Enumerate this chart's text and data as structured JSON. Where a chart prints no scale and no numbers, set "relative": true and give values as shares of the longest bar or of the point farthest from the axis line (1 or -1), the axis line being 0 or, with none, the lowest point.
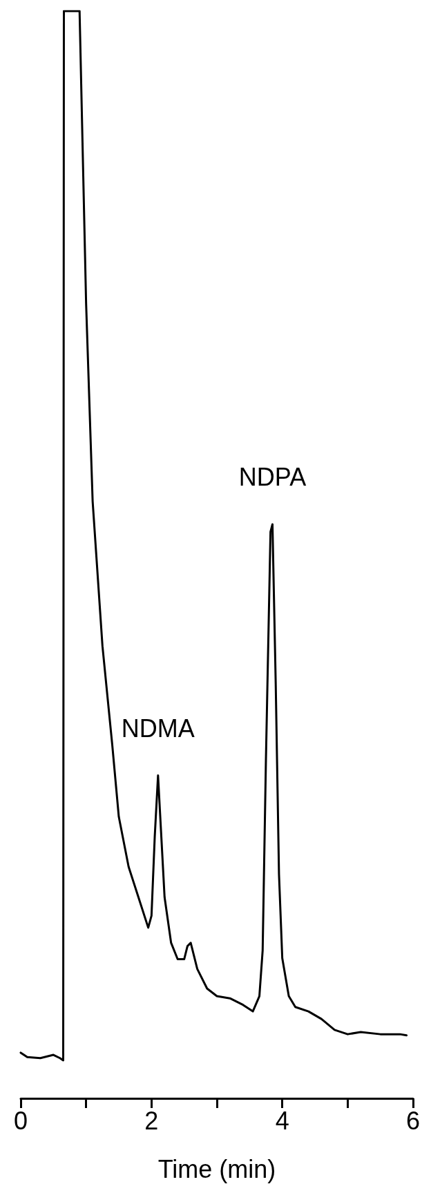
{
  "chart_data": {
    "type": "line",
    "relative": true,
    "xlabel": "Time (min)",
    "color": "#000000",
    "marker": "none",
    "line_style": "solid",
    "grid": false,
    "xlim": [
      0,
      6
    ],
    "xticks": [
      0,
      {
        "value": 1,
        "label": null
      },
      2,
      {
        "value": 3,
        "label": null
      },
      4,
      {
        "value": 5,
        "label": null
      },
      6
    ],
    "x": [
      0.0,
      0.1,
      0.3,
      0.5,
      0.6,
      0.65,
      0.66,
      0.9,
      1.0,
      1.1,
      1.25,
      1.4,
      1.5,
      1.65,
      1.8,
      1.95,
      2.0,
      2.05,
      2.1,
      2.15,
      2.2,
      2.3,
      2.4,
      2.5,
      2.55,
      2.6,
      2.7,
      2.85,
      3.0,
      3.2,
      3.4,
      3.55,
      3.65,
      3.7,
      3.75,
      3.82,
      3.85,
      3.9,
      3.95,
      4.0,
      4.1,
      4.2,
      4.4,
      4.6,
      4.8,
      5.0,
      5.2,
      5.5,
      5.8,
      5.9
    ],
    "values": [
      0.042,
      0.038,
      0.037,
      0.04,
      0.037,
      0.035,
      1.0,
      1.0,
      0.731,
      0.549,
      0.416,
      0.325,
      0.259,
      0.213,
      0.185,
      0.157,
      0.168,
      0.241,
      0.297,
      0.241,
      0.185,
      0.143,
      0.128,
      0.128,
      0.14,
      0.143,
      0.119,
      0.101,
      0.094,
      0.092,
      0.086,
      0.08,
      0.094,
      0.136,
      0.311,
      0.521,
      0.528,
      0.381,
      0.206,
      0.129,
      0.094,
      0.084,
      0.08,
      0.073,
      0.063,
      0.059,
      0.061,
      0.059,
      0.059,
      0.058
    ],
    "annotations": [
      {
        "text": "NDMA",
        "x": 2.1,
        "y": 0.297
      },
      {
        "text": "NDPA",
        "x": 3.85,
        "y": 0.528
      }
    ]
  }
}
